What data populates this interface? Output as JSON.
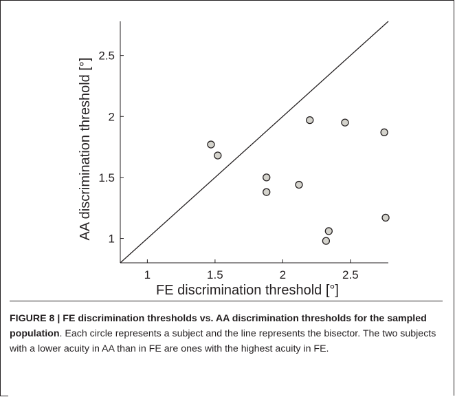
{
  "chart_data": {
    "type": "scatter",
    "xlabel": "FE discrimination threshold [°]",
    "ylabel": "AA discrimination threshold [°]",
    "xlim": [
      0.8,
      2.78
    ],
    "ylim": [
      0.8,
      2.78
    ],
    "xticks": [
      "1",
      "1.5",
      "2",
      "2.5"
    ],
    "yticks": [
      "1",
      "1.5",
      "2",
      "2.5"
    ],
    "xtick_values": [
      1,
      1.5,
      2,
      2.5
    ],
    "ytick_values": [
      1,
      1.5,
      2,
      2.5
    ],
    "reference_line": "bisector",
    "points": [
      {
        "x": 1.47,
        "y": 1.77
      },
      {
        "x": 1.52,
        "y": 1.68
      },
      {
        "x": 1.88,
        "y": 1.5
      },
      {
        "x": 1.88,
        "y": 1.38
      },
      {
        "x": 2.12,
        "y": 1.44
      },
      {
        "x": 2.2,
        "y": 1.97
      },
      {
        "x": 2.46,
        "y": 1.95
      },
      {
        "x": 2.75,
        "y": 1.87
      },
      {
        "x": 2.76,
        "y": 1.17
      },
      {
        "x": 2.34,
        "y": 1.06
      },
      {
        "x": 2.32,
        "y": 0.98
      }
    ],
    "marker_fill": "#d4d3cc",
    "marker_stroke": "#231f20"
  },
  "caption": {
    "label": "FIGURE 8 | FE discrimination thresholds vs. AA discrimination thresholds for the sampled population",
    "text": ". Each circle represents a subject and the line represents the bisector. The two subjects with a lower acuity in AA than in FE are ones with the highest acuity in FE."
  }
}
